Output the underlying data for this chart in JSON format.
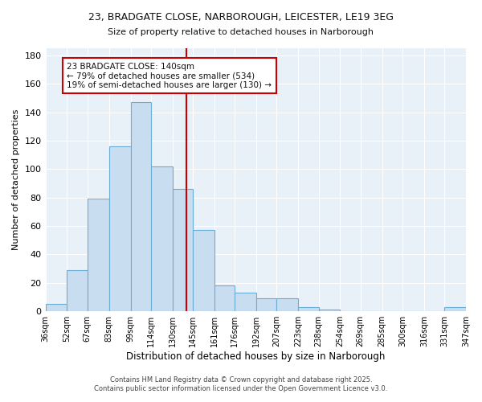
{
  "title_line1": "23, BRADGATE CLOSE, NARBOROUGH, LEICESTER, LE19 3EG",
  "title_line2": "Size of property relative to detached houses in Narborough",
  "xlabel": "Distribution of detached houses by size in Narborough",
  "ylabel": "Number of detached properties",
  "bin_edges": [
    36,
    52,
    67,
    83,
    99,
    114,
    130,
    145,
    161,
    176,
    192,
    207,
    223,
    238,
    254,
    269,
    285,
    300,
    316,
    331,
    347
  ],
  "bar_heights": [
    5,
    29,
    79,
    116,
    147,
    102,
    86,
    57,
    18,
    13,
    9,
    9,
    3,
    1,
    0,
    0,
    0,
    0,
    0,
    3
  ],
  "bar_color": "#c9ddf0",
  "bar_edge_color": "#6aaed6",
  "property_size": 140,
  "vline_color": "#cc0000",
  "annotation_line1": "23 BRADGATE CLOSE: 140sqm",
  "annotation_line2": "← 79% of detached houses are smaller (534)",
  "annotation_line3": "19% of semi-detached houses are larger (130) →",
  "annotation_box_color": "#ffffff",
  "annotation_box_edge_color": "#cc0000",
  "ylim": [
    0,
    185
  ],
  "yticks": [
    0,
    20,
    40,
    60,
    80,
    100,
    120,
    140,
    160,
    180
  ],
  "fig_background_color": "#ffffff",
  "plot_background_color": "#e8f0f8",
  "grid_color": "#ffffff",
  "footer_line1": "Contains HM Land Registry data © Crown copyright and database right 2025.",
  "footer_line2": "Contains public sector information licensed under the Open Government Licence v3.0.",
  "tick_labels": [
    "36sqm",
    "52sqm",
    "67sqm",
    "83sqm",
    "99sqm",
    "114sqm",
    "130sqm",
    "145sqm",
    "161sqm",
    "176sqm",
    "192sqm",
    "207sqm",
    "223sqm",
    "238sqm",
    "254sqm",
    "269sqm",
    "285sqm",
    "300sqm",
    "316sqm",
    "331sqm",
    "347sqm"
  ]
}
